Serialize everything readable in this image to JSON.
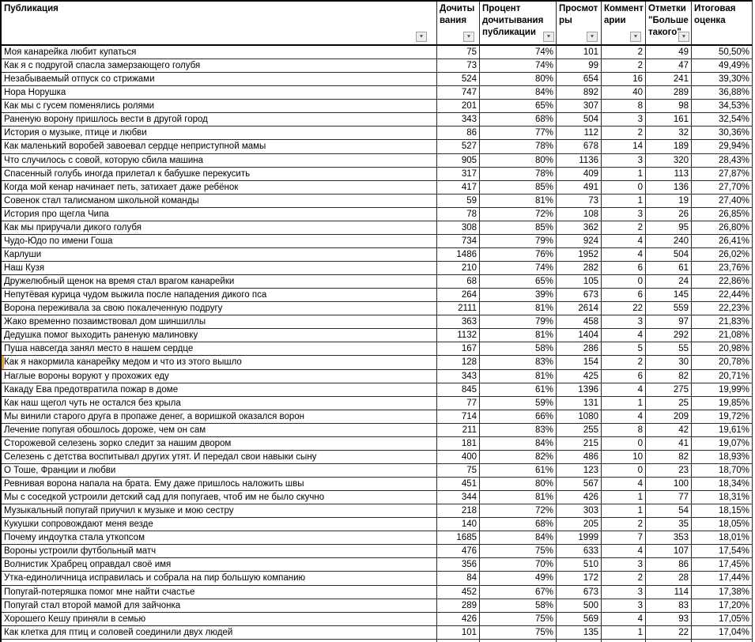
{
  "table": {
    "columns": [
      {
        "label": "Публикация",
        "filter": true
      },
      {
        "label": "Дочитывания",
        "filter": true
      },
      {
        "label": "Процент дочитывания публикации",
        "filter": true
      },
      {
        "label": "Просмотры",
        "filter": true
      },
      {
        "label": "Комментарии",
        "filter": true
      },
      {
        "label": "Отметки \"Больше такого\"",
        "filter": true
      },
      {
        "label": "Итоговая оценка",
        "filter": false
      }
    ],
    "highlighted_row_index": 23,
    "rows": [
      [
        "Моя канарейка любит купаться",
        75,
        "74%",
        101,
        2,
        49,
        "50,50%"
      ],
      [
        "Как я с подругой спасла замерзающего голубя",
        73,
        "74%",
        99,
        2,
        47,
        "49,49%"
      ],
      [
        "Незабываемый отпуск со стрижами",
        524,
        "80%",
        654,
        16,
        241,
        "39,30%"
      ],
      [
        "Нора Норушка",
        747,
        "84%",
        892,
        40,
        289,
        "36,88%"
      ],
      [
        "Как мы с гусем поменялись ролями",
        201,
        "65%",
        307,
        8,
        98,
        "34,53%"
      ],
      [
        "Раненую ворону пришлось вести в другой город",
        343,
        "68%",
        504,
        3,
        161,
        "32,54%"
      ],
      [
        "История о музыке, птице и любви",
        86,
        "77%",
        112,
        2,
        32,
        "30,36%"
      ],
      [
        "Как маленький воробей завоевал сердце неприступной мамы",
        527,
        "78%",
        678,
        14,
        189,
        "29,94%"
      ],
      [
        "Что случилось с совой, которую сбила машина",
        905,
        "80%",
        1136,
        3,
        320,
        "28,43%"
      ],
      [
        "Спасенный голубь иногда прилетал к бабушке перекусить",
        317,
        "78%",
        409,
        1,
        113,
        "27,87%"
      ],
      [
        "Когда мой кенар начинает петь, затихает даже ребёнок",
        417,
        "85%",
        491,
        0,
        136,
        "27,70%"
      ],
      [
        "Совенок стал талисманом школьной команды",
        59,
        "81%",
        73,
        1,
        19,
        "27,40%"
      ],
      [
        "История про щегла Чипа",
        78,
        "72%",
        108,
        3,
        26,
        "26,85%"
      ],
      [
        "Как мы приручали дикого голубя",
        308,
        "85%",
        362,
        2,
        95,
        "26,80%"
      ],
      [
        "Чудо-Юдо по имени Гоша",
        734,
        "79%",
        924,
        4,
        240,
        "26,41%"
      ],
      [
        "Карлуши",
        1486,
        "76%",
        1952,
        4,
        504,
        "26,02%"
      ],
      [
        "Наш Кузя",
        210,
        "74%",
        282,
        6,
        61,
        "23,76%"
      ],
      [
        "Дружелюбный щенок на время стал врагом канарейки",
        68,
        "65%",
        105,
        0,
        24,
        "22,86%"
      ],
      [
        "Непутёвая курица чудом выжила после нападения дикого пса",
        264,
        "39%",
        673,
        6,
        145,
        "22,44%"
      ],
      [
        "Ворона переживала за свою покалеченную подругу",
        2111,
        "81%",
        2614,
        22,
        559,
        "22,23%"
      ],
      [
        "Жако временно позаимствовал дом шиншиллы",
        363,
        "79%",
        458,
        3,
        97,
        "21,83%"
      ],
      [
        "Дедушка помог выходить раненую малиновку",
        1132,
        "81%",
        1404,
        4,
        292,
        "21,08%"
      ],
      [
        "Пуша навсегда занял место в нашем сердце",
        167,
        "58%",
        286,
        5,
        55,
        "20,98%"
      ],
      [
        "Как я накормила канарейку медом и что из этого вышло",
        128,
        "83%",
        154,
        2,
        30,
        "20,78%"
      ],
      [
        "Наглые вороны воруют у прохожих еду",
        343,
        "81%",
        425,
        6,
        82,
        "20,71%"
      ],
      [
        "Какаду Ева предотвратила пожар в доме",
        845,
        "61%",
        1396,
        4,
        275,
        "19,99%"
      ],
      [
        "Как наш щегол чуть не остался без крыла",
        77,
        "59%",
        131,
        1,
        25,
        "19,85%"
      ],
      [
        "Мы винили старого друга в пропаже денег, а воришкой оказался ворон",
        714,
        "66%",
        1080,
        4,
        209,
        "19,72%"
      ],
      [
        "Лечение попугая обошлось дороже, чем он сам",
        211,
        "83%",
        255,
        8,
        42,
        "19,61%"
      ],
      [
        "Сторожевой селезень зорко следит за нашим двором",
        181,
        "84%",
        215,
        0,
        41,
        "19,07%"
      ],
      [
        "Селезень с детства воспитывал других утят. И передал свои навыки сыну",
        400,
        "82%",
        486,
        10,
        82,
        "18,93%"
      ],
      [
        "О Тоше, Франции и любви",
        75,
        "61%",
        123,
        0,
        23,
        "18,70%"
      ],
      [
        "Ревнивая ворона напала на брата. Ему даже пришлось наложить швы",
        451,
        "80%",
        567,
        4,
        100,
        "18,34%"
      ],
      [
        "Мы с соседкой устроили детский сад для попугаев, чтоб им не было скучно",
        344,
        "81%",
        426,
        1,
        77,
        "18,31%"
      ],
      [
        "Музыкальный попугай приучил к музыке и мою сестру",
        218,
        "72%",
        303,
        1,
        54,
        "18,15%"
      ],
      [
        "Кукушки сопровождают меня везде",
        140,
        "68%",
        205,
        2,
        35,
        "18,05%"
      ],
      [
        "Почему индоутка стала уткопсом",
        1685,
        "84%",
        1999,
        7,
        353,
        "18,01%"
      ],
      [
        "Вороны устроили футбольный матч",
        476,
        "75%",
        633,
        4,
        107,
        "17,54%"
      ],
      [
        "Волнистик Храбрец оправдал своё имя",
        356,
        "70%",
        510,
        3,
        86,
        "17,45%"
      ],
      [
        "Утка-единоличница исправилась и собрала на пир большую компанию",
        84,
        "49%",
        172,
        2,
        28,
        "17,44%"
      ],
      [
        "Попугай-потеряшка помог мне найти счастье",
        452,
        "67%",
        673,
        3,
        114,
        "17,38%"
      ],
      [
        "Попугай стал второй мамой для зайчонка",
        289,
        "58%",
        500,
        3,
        83,
        "17,20%"
      ],
      [
        "Хорошего Кешу приняли в семью",
        426,
        "75%",
        569,
        4,
        93,
        "17,05%"
      ],
      [
        "Как клетка для птиц и соловей соединили двух людей",
        101,
        "75%",
        135,
        1,
        22,
        "17,04%"
      ]
    ]
  },
  "icons": {
    "filter_arrow": "▼"
  },
  "colors": {
    "grid_line": "#2b2b2b",
    "outer_border": "#000000",
    "highlight": "#e2a13d",
    "filter_button_bg": "#ededed",
    "filter_button_border": "#a0a0a0"
  }
}
